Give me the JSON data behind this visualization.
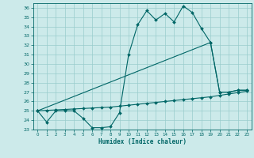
{
  "title": "",
  "xlabel": "Humidex (Indice chaleur)",
  "bg_color": "#cceaea",
  "line_color": "#006666",
  "grid_color": "#99cccc",
  "xlim": [
    -0.5,
    23.5
  ],
  "ylim": [
    23,
    36.5
  ],
  "yticks": [
    23,
    24,
    25,
    26,
    27,
    28,
    29,
    30,
    31,
    32,
    33,
    34,
    35,
    36
  ],
  "xticks": [
    0,
    1,
    2,
    3,
    4,
    5,
    6,
    7,
    8,
    9,
    10,
    11,
    12,
    13,
    14,
    15,
    16,
    17,
    18,
    19,
    20,
    21,
    22,
    23
  ],
  "series1_x": [
    0,
    1,
    2,
    3,
    4,
    5,
    6,
    7,
    8,
    9,
    10,
    11,
    12,
    13,
    14,
    15,
    16,
    17,
    18,
    19,
    20,
    21,
    22,
    23
  ],
  "series1_y": [
    25.0,
    23.8,
    25.0,
    25.0,
    25.0,
    24.2,
    23.2,
    23.2,
    23.3,
    24.8,
    31.0,
    34.2,
    35.7,
    34.7,
    35.4,
    34.5,
    36.2,
    35.5,
    33.8,
    32.3,
    27.0,
    27.0,
    27.2,
    27.2
  ],
  "series2_x": [
    0,
    1,
    2,
    3,
    4,
    5,
    6,
    7,
    8,
    9,
    10,
    11,
    12,
    13,
    14,
    15,
    16,
    17,
    18,
    19,
    20,
    21,
    22,
    23
  ],
  "series2_y": [
    25.0,
    25.05,
    25.1,
    25.15,
    25.2,
    25.25,
    25.3,
    25.35,
    25.4,
    25.5,
    25.6,
    25.7,
    25.8,
    25.9,
    26.0,
    26.1,
    26.2,
    26.3,
    26.4,
    26.5,
    26.65,
    26.8,
    26.95,
    27.1
  ],
  "series3_x": [
    0,
    19,
    20,
    21,
    22,
    23
  ],
  "series3_y": [
    25.0,
    32.3,
    27.0,
    27.0,
    27.2,
    27.2
  ]
}
